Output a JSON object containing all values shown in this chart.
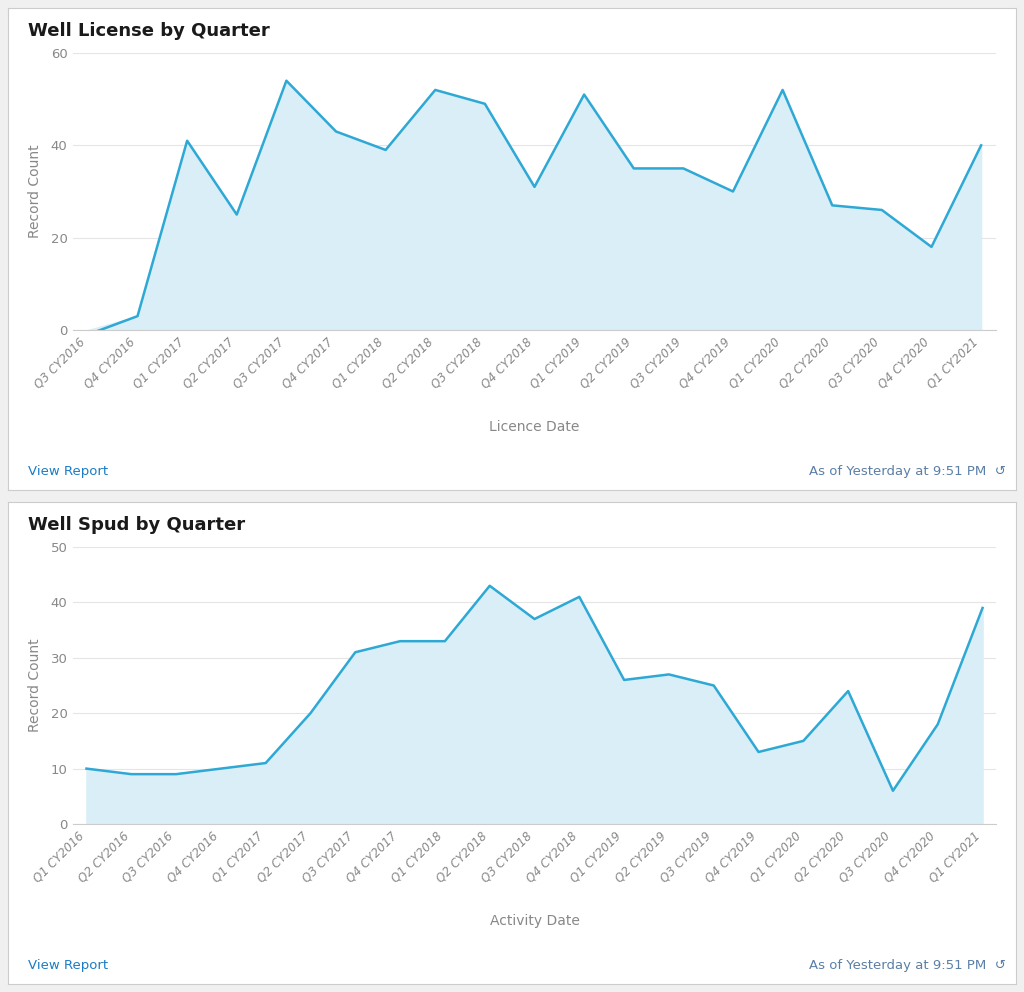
{
  "chart1": {
    "title": "Well License by Quarter",
    "xlabel": "Licence Date",
    "ylabel": "Record Count",
    "categories": [
      "Q3 CY2016",
      "Q4 CY2016",
      "Q1 CY2017",
      "Q2 CY2017",
      "Q3 CY2017",
      "Q4 CY2017",
      "Q1 CY2018",
      "Q2 CY2018",
      "Q3 CY2018",
      "Q4 CY2018",
      "Q1 CY2019",
      "Q2 CY2019",
      "Q3 CY2019",
      "Q4 CY2019",
      "Q1 CY2020",
      "Q2 CY2020",
      "Q3 CY2020",
      "Q4 CY2020",
      "Q1 CY2021"
    ],
    "values": [
      -1,
      3,
      41,
      25,
      54,
      43,
      39,
      52,
      49,
      31,
      51,
      35,
      35,
      30,
      52,
      27,
      26,
      18,
      40
    ],
    "ylim": [
      0,
      60
    ],
    "yticks": [
      0,
      20,
      40,
      60
    ],
    "line_color": "#2EA8D5",
    "fill_color": "#D9EEF7",
    "view_report_text": "View Report",
    "as_of_text": "As of Yesterday at 9:51 PM"
  },
  "chart2": {
    "title": "Well Spud by Quarter",
    "xlabel": "Activity Date",
    "ylabel": "Record Count",
    "categories": [
      "Q1 CY2016",
      "Q2 CY2016",
      "Q3 CY2016",
      "Q4 CY2016",
      "Q1 CY2017",
      "Q2 CY2017",
      "Q3 CY2017",
      "Q4 CY2017",
      "Q1 CY2018",
      "Q2 CY2018",
      "Q3 CY2018",
      "Q4 CY2018",
      "Q1 CY2019",
      "Q2 CY2019",
      "Q3 CY2019",
      "Q4 CY2019",
      "Q1 CY2020",
      "Q2 CY2020",
      "Q3 CY2020",
      "Q4 CY2020",
      "Q1 CY2021"
    ],
    "values": [
      10,
      9,
      9,
      10,
      11,
      20,
      31,
      33,
      33,
      43,
      37,
      41,
      26,
      27,
      25,
      13,
      15,
      24,
      6,
      18,
      39
    ],
    "ylim": [
      0,
      50
    ],
    "yticks": [
      0,
      10,
      20,
      30,
      40,
      50
    ],
    "line_color": "#2EA8D5",
    "fill_color": "#D9EEF7",
    "view_report_text": "View Report",
    "as_of_text": "As of Yesterday at 9:51 PM"
  },
  "background_color": "#F0F0F0",
  "panel_bg": "#FFFFFF",
  "border_color": "#CCCCCC",
  "grid_color": "#E5E5E5",
  "title_color": "#1A1A1A",
  "axis_label_color": "#888888",
  "tick_color": "#888888",
  "view_report_color": "#1B7CC4",
  "as_of_color": "#5B7FA6"
}
